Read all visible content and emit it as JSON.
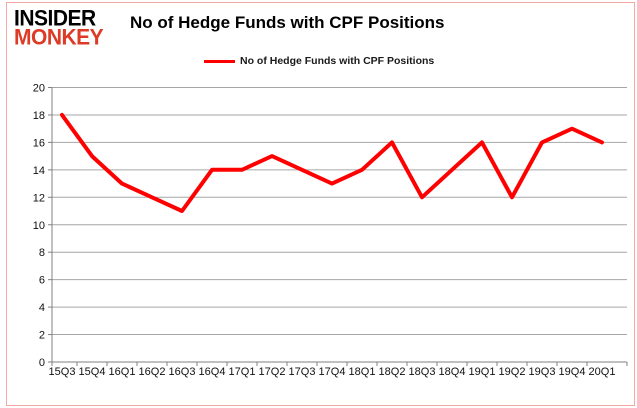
{
  "logo": {
    "line1": "INSIDER",
    "line2": "MONKEY",
    "accent_color": "#dd3b26"
  },
  "header": {
    "title": "No of Hedge Funds with CPF Positions"
  },
  "legend": {
    "label": "No of Hedge Funds with CPF Positions",
    "color": "#ff0000",
    "position": "top"
  },
  "colors": {
    "line": "#ff0000",
    "gridline": "#a6a6a6",
    "axis": "#808080",
    "border": "#f2aba4",
    "background": "#ffffff"
  },
  "chart_data": {
    "type": "line",
    "title": "No of Hedge Funds with CPF Positions",
    "categories": [
      "15Q3",
      "15Q4",
      "16Q1",
      "16Q2",
      "16Q3",
      "16Q4",
      "17Q1",
      "17Q2",
      "17Q3",
      "17Q4",
      "18Q1",
      "18Q2",
      "18Q3",
      "18Q4",
      "19Q1",
      "19Q2",
      "19Q3",
      "19Q4",
      "20Q1"
    ],
    "series": [
      {
        "name": "No of Hedge Funds with CPF Positions",
        "color": "#ff0000",
        "values": [
          18,
          15,
          13,
          12,
          11,
          14,
          14,
          15,
          14,
          13,
          14,
          16,
          12,
          14,
          16,
          12,
          16,
          17,
          16
        ]
      }
    ],
    "xlabel": "",
    "ylabel": "",
    "ylim": [
      0,
      20
    ],
    "ytick_step": 2,
    "grid": true,
    "legend_position": "top"
  }
}
